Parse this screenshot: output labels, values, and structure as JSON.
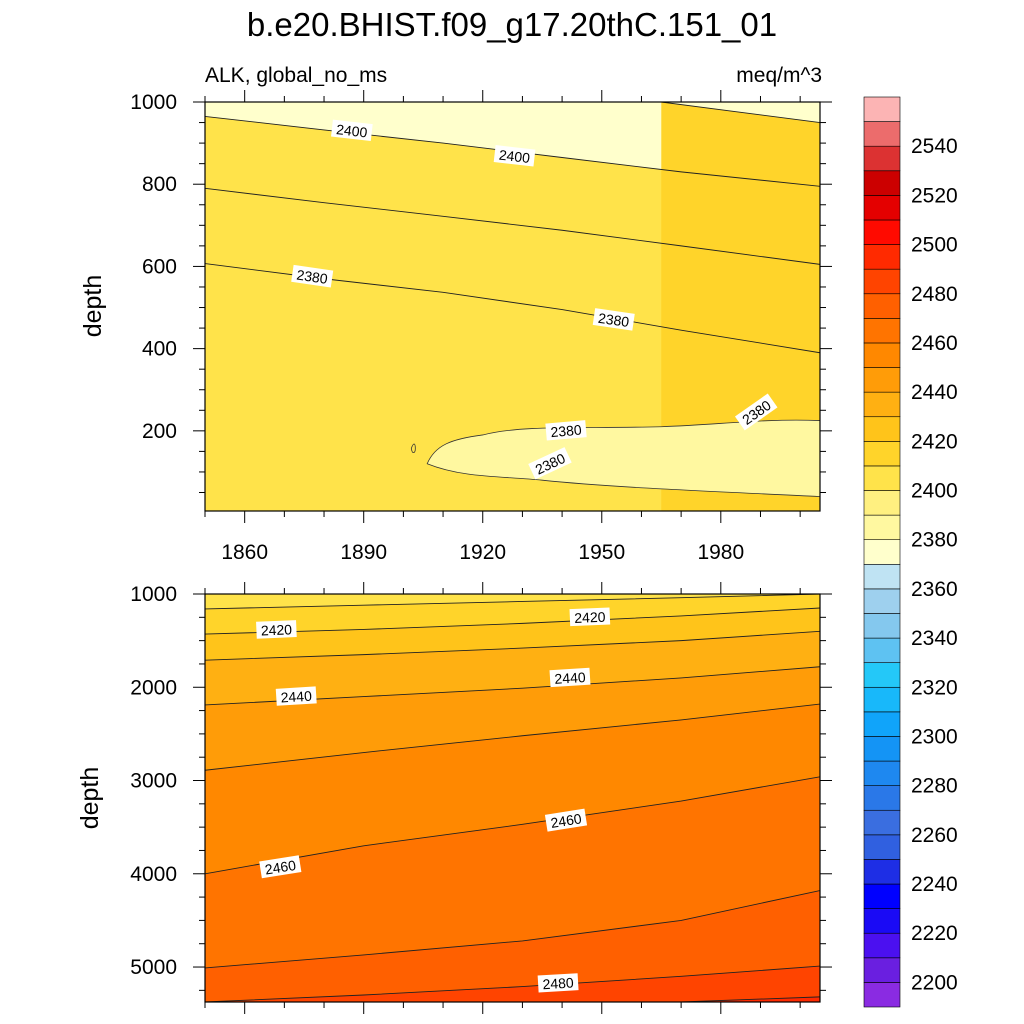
{
  "chart_data": {
    "type": "contour",
    "title": "b.e20.BHIST.f09_g17.20thC.151_01",
    "left_string": "ALK, global_no_ms",
    "right_string": "meq/m^3",
    "xlabel": "",
    "x_ticks": [
      "1860",
      "1890",
      "1920",
      "1950",
      "1980"
    ],
    "x_tick_values": [
      1860,
      1890,
      1920,
      1950,
      1980
    ],
    "xlim": [
      1850,
      2005
    ],
    "panels": [
      {
        "name": "upper",
        "ylabel": "depth",
        "ylim": [
          1000,
          5
        ],
        "y_ticks": [
          "200",
          "400",
          "600",
          "800",
          "1000"
        ],
        "y_tick_values": [
          200,
          400,
          600,
          800,
          1000
        ],
        "contours": [
          {
            "level": 2380,
            "x": [
              1850,
              1880,
              1910,
              1940,
              1970,
              2005
            ],
            "depth": [
              607,
              570,
              537,
              495,
              445,
              390
            ]
          },
          {
            "level": 2390,
            "x": [
              1850,
              1880,
              1910,
              1940,
              1970,
              2005
            ],
            "depth": [
              790,
              755,
              722,
              688,
              650,
              605
            ]
          },
          {
            "level": 2400,
            "x": [
              1850,
              1880,
              1910,
              1940,
              1970,
              2005
            ],
            "depth": [
              965,
              932,
              900,
              865,
              830,
              795
            ]
          },
          {
            "level": 2410,
            "x": [
              1965,
              1985,
              2005
            ],
            "depth": [
              1000,
              975,
              950
            ]
          }
        ],
        "labels": [
          {
            "text": "2380",
            "x": 1877,
            "depth": 575
          },
          {
            "text": "2380",
            "x": 1953,
            "depth": 470
          },
          {
            "text": "2380",
            "x": 1937,
            "depth": 120
          },
          {
            "text": "2380",
            "x": 1941,
            "depth": 200
          },
          {
            "text": "2380",
            "x": 1989,
            "depth": 245
          },
          {
            "text": "2400",
            "x": 1887,
            "depth": 930
          },
          {
            "text": "2400",
            "x": 1928,
            "depth": 868
          }
        ]
      },
      {
        "name": "lower",
        "ylabel": "depth",
        "ylim": [
          1000,
          5375
        ],
        "y_ticks": [
          "1000",
          "2000",
          "3000",
          "4000",
          "5000"
        ],
        "y_tick_values": [
          1000,
          2000,
          3000,
          4000,
          5000
        ],
        "contours": [
          {
            "level": 2410,
            "x": [
              1850,
              1890,
              1930,
              1970,
              2005
            ],
            "depth": [
              1160,
              1120,
              1080,
              1040,
              1000
            ]
          },
          {
            "level": 2420,
            "x": [
              1850,
              1890,
              1930,
              1970,
              2005
            ],
            "depth": [
              1430,
              1380,
              1315,
              1235,
              1150
            ]
          },
          {
            "level": 2430,
            "x": [
              1850,
              1890,
              1930,
              1970,
              2005
            ],
            "depth": [
              1710,
              1650,
              1580,
              1500,
              1400
            ]
          },
          {
            "level": 2440,
            "x": [
              1850,
              1890,
              1930,
              1970,
              2005
            ],
            "depth": [
              2190,
              2100,
              2010,
              1900,
              1780
            ]
          },
          {
            "level": 2450,
            "x": [
              1850,
              1890,
              1930,
              1970,
              2005
            ],
            "depth": [
              2890,
              2700,
              2520,
              2350,
              2180
            ]
          },
          {
            "level": 2460,
            "x": [
              1850,
              1890,
              1930,
              1970,
              2005
            ],
            "depth": [
              4000,
              3700,
              3470,
              3220,
              2960
            ]
          },
          {
            "level": 2470,
            "x": [
              1850,
              1890,
              1930,
              1970,
              2005
            ],
            "depth": [
              5010,
              4870,
              4720,
              4500,
              4180
            ]
          },
          {
            "level": 2480,
            "x": [
              1850,
              1890,
              1930,
              1970,
              2005
            ],
            "depth": [
              5375,
              5300,
              5210,
              5100,
              4990
            ]
          },
          {
            "level": 2490,
            "x": [
              1970,
              2005
            ],
            "depth": [
              5375,
              5320
            ]
          }
        ],
        "labels": [
          {
            "text": "2420",
            "x": 1868,
            "depth": 1385
          },
          {
            "text": "2420",
            "x": 1947,
            "depth": 1250
          },
          {
            "text": "2440",
            "x": 1873,
            "depth": 2100
          },
          {
            "text": "2440",
            "x": 1942,
            "depth": 1900
          },
          {
            "text": "2460",
            "x": 1869,
            "depth": 3930
          },
          {
            "text": "2460",
            "x": 1941,
            "depth": 3430
          },
          {
            "text": "2480",
            "x": 1939,
            "depth": 5175
          }
        ]
      }
    ],
    "colorbar": {
      "levels": [
        2200,
        2210,
        2220,
        2230,
        2240,
        2250,
        2260,
        2270,
        2280,
        2290,
        2300,
        2310,
        2320,
        2330,
        2340,
        2350,
        2360,
        2370,
        2380,
        2390,
        2400,
        2410,
        2420,
        2430,
        2440,
        2450,
        2460,
        2470,
        2480,
        2490,
        2500,
        2510,
        2520,
        2530,
        2540,
        2550
      ],
      "labels": [
        "2200",
        "2220",
        "2240",
        "2260",
        "2280",
        "2300",
        "2320",
        "2340",
        "2360",
        "2380",
        "2400",
        "2420",
        "2440",
        "2460",
        "2480",
        "2500",
        "2520",
        "2540"
      ],
      "label_values": [
        2200,
        2220,
        2240,
        2260,
        2280,
        2300,
        2320,
        2340,
        2360,
        2380,
        2400,
        2420,
        2440,
        2460,
        2480,
        2500,
        2520,
        2540
      ],
      "colors": [
        "#8a2be2",
        "#6a1fe0",
        "#4b10f0",
        "#1a0af5",
        "#0000ff",
        "#1e2ee5",
        "#3060e0",
        "#3a6ee0",
        "#2a78e8",
        "#1e88f0",
        "#1494f5",
        "#10a4fa",
        "#18b8fa",
        "#24c8f8",
        "#5ec2f2",
        "#84c8ee",
        "#9ed0ee",
        "#bfe3f3",
        "#ffffcc",
        "#fff8a0",
        "#fff080",
        "#ffe34a",
        "#ffd42a",
        "#ffc41a",
        "#ffb012",
        "#ff9c08",
        "#ff8800",
        "#ff7400",
        "#ff6000",
        "#ff4400",
        "#ff2a00",
        "#ff0a00",
        "#e40000",
        "#cc0000",
        "#dc3232",
        "#ec6c6c",
        "#fcb4b4"
      ]
    }
  }
}
